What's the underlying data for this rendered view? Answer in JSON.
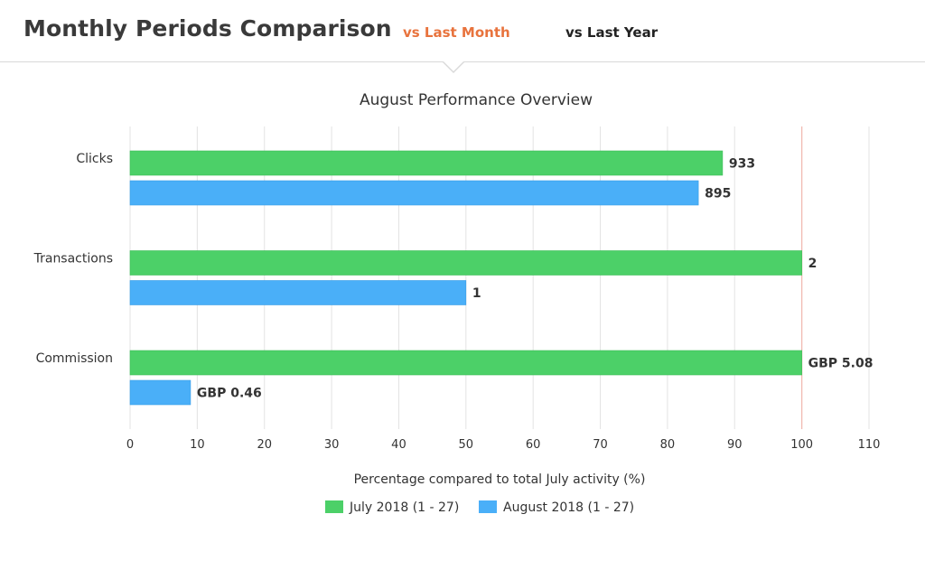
{
  "header": {
    "title": "Monthly Periods Comparison",
    "tabs": [
      {
        "label": "vs Last Month",
        "active": true,
        "color": "#e8733d"
      },
      {
        "label": "vs Last Year",
        "active": false,
        "color": "#222222"
      }
    ]
  },
  "chart_data": {
    "type": "bar",
    "orientation": "horizontal",
    "title": "August Performance Overview",
    "xlabel": "Percentage compared to total July activity (%)",
    "ylabel": "",
    "xlim": [
      0,
      110
    ],
    "xticks": [
      "0",
      "10",
      "20",
      "30",
      "40",
      "50",
      "60",
      "70",
      "80",
      "90",
      "100",
      "110"
    ],
    "grid": true,
    "reference_line": {
      "value": 100,
      "color": "#f2b8b0"
    },
    "categories": [
      "Clicks",
      "Transactions",
      "Commission"
    ],
    "series": [
      {
        "name": "July 2018 (1 - 27)",
        "color": "#4cd068",
        "values": [
          88.2,
          100,
          100
        ],
        "data_labels": [
          "933",
          "2",
          "GBP 5.08"
        ]
      },
      {
        "name": "August 2018 (1 - 27)",
        "color": "#4aaff8",
        "values": [
          84.6,
          50,
          9
        ],
        "data_labels": [
          "895",
          "1",
          "GBP 0.46"
        ]
      }
    ],
    "legend_position": "bottom-center"
  }
}
